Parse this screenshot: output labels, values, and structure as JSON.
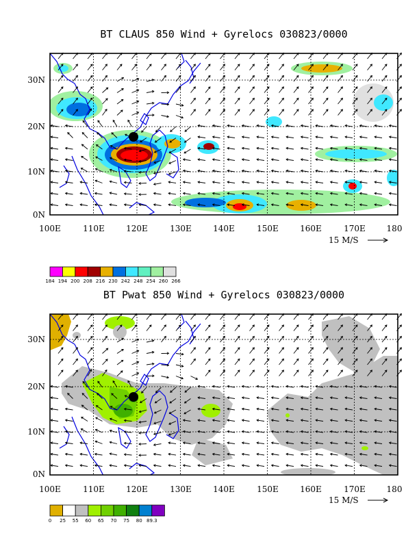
{
  "maps": [
    {
      "title": "BT CLAUS 850 Wind + Gyrelocs 030823/0000",
      "lat_labels": [
        "30N",
        "20N",
        "10N",
        "0N"
      ],
      "lon_labels": [
        "100E",
        "110E",
        "120E",
        "130E",
        "140E",
        "150E",
        "160E",
        "170E",
        "180"
      ],
      "ref_vector": "15 M/S",
      "colorbar": {
        "colors": [
          "#ff00ff",
          "#ffff00",
          "#ff0000",
          "#a00000",
          "#e8b000",
          "#0070e0",
          "#40e8ff",
          "#60f0c0",
          "#a0f0a0",
          "#e0e0e0"
        ],
        "labels": [
          "184",
          "194",
          "200",
          "208",
          "216",
          "230",
          "242",
          "248",
          "254",
          "260",
          "266"
        ]
      }
    },
    {
      "title": "BT Pwat 850 Wind + Gyrelocs 030823/0000",
      "lat_labels": [
        "30N",
        "20N",
        "10N",
        "0N"
      ],
      "lon_labels": [
        "100E",
        "110E",
        "120E",
        "130E",
        "140E",
        "150E",
        "160E",
        "170E",
        "180"
      ],
      "ref_vector": "15 M/S",
      "colorbar": {
        "colors": [
          "#e0b000",
          "#ffffff",
          "#c0c0c0",
          "#a0f000",
          "#70d000",
          "#40b000",
          "#108010",
          "#0080d0",
          "#8000c0"
        ],
        "labels": [
          "0",
          "25",
          "55",
          "60",
          "65",
          "70",
          "75",
          "80",
          "89.3"
        ]
      }
    }
  ]
}
